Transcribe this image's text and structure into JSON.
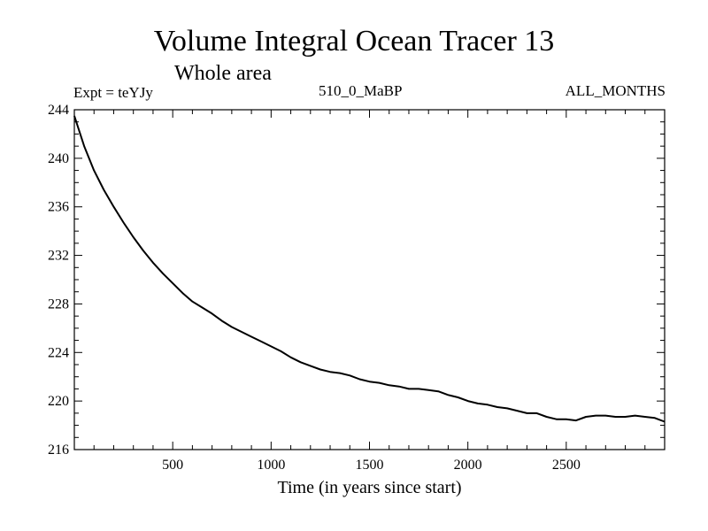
{
  "chart_data": {
    "type": "line",
    "title": "Volume Integral Ocean Tracer 13",
    "subtitle": "Whole area",
    "left_label": "Expt = teYJy",
    "center_label": "510_0_MaBP",
    "right_label": "ALL_MONTHS",
    "xlabel": "Time (in years since start)",
    "ylabel": "",
    "xlim": [
      0,
      3000
    ],
    "ylim": [
      216,
      244
    ],
    "xticks": [
      500,
      1000,
      1500,
      2000,
      2500
    ],
    "yticks": [
      216,
      220,
      224,
      228,
      232,
      236,
      240,
      244
    ],
    "series": [
      {
        "name": "Tracer 13",
        "x": [
          0,
          50,
          100,
          150,
          200,
          250,
          300,
          350,
          400,
          450,
          500,
          550,
          600,
          650,
          700,
          750,
          800,
          850,
          900,
          950,
          1000,
          1050,
          1100,
          1150,
          1200,
          1250,
          1300,
          1350,
          1400,
          1450,
          1500,
          1550,
          1600,
          1650,
          1700,
          1750,
          1800,
          1850,
          1900,
          1950,
          2000,
          2050,
          2100,
          2150,
          2200,
          2250,
          2300,
          2350,
          2400,
          2450,
          2500,
          2550,
          2600,
          2650,
          2700,
          2750,
          2800,
          2850,
          2900,
          2950,
          3000
        ],
        "values": [
          243.5,
          241.0,
          239.0,
          237.4,
          236.0,
          234.7,
          233.5,
          232.4,
          231.4,
          230.5,
          229.7,
          228.9,
          228.2,
          227.7,
          227.2,
          226.6,
          226.1,
          225.7,
          225.3,
          224.9,
          224.5,
          224.1,
          223.6,
          223.2,
          222.9,
          222.6,
          222.4,
          222.3,
          222.1,
          221.8,
          221.6,
          221.5,
          221.3,
          221.2,
          221.0,
          221.0,
          220.9,
          220.8,
          220.5,
          220.3,
          220.0,
          219.8,
          219.7,
          219.5,
          219.4,
          219.2,
          219.0,
          219.0,
          218.7,
          218.5,
          218.5,
          218.4,
          218.7,
          218.8,
          218.8,
          218.7,
          218.7,
          218.8,
          218.7,
          218.6,
          218.3
        ]
      }
    ],
    "color": "#000000"
  }
}
